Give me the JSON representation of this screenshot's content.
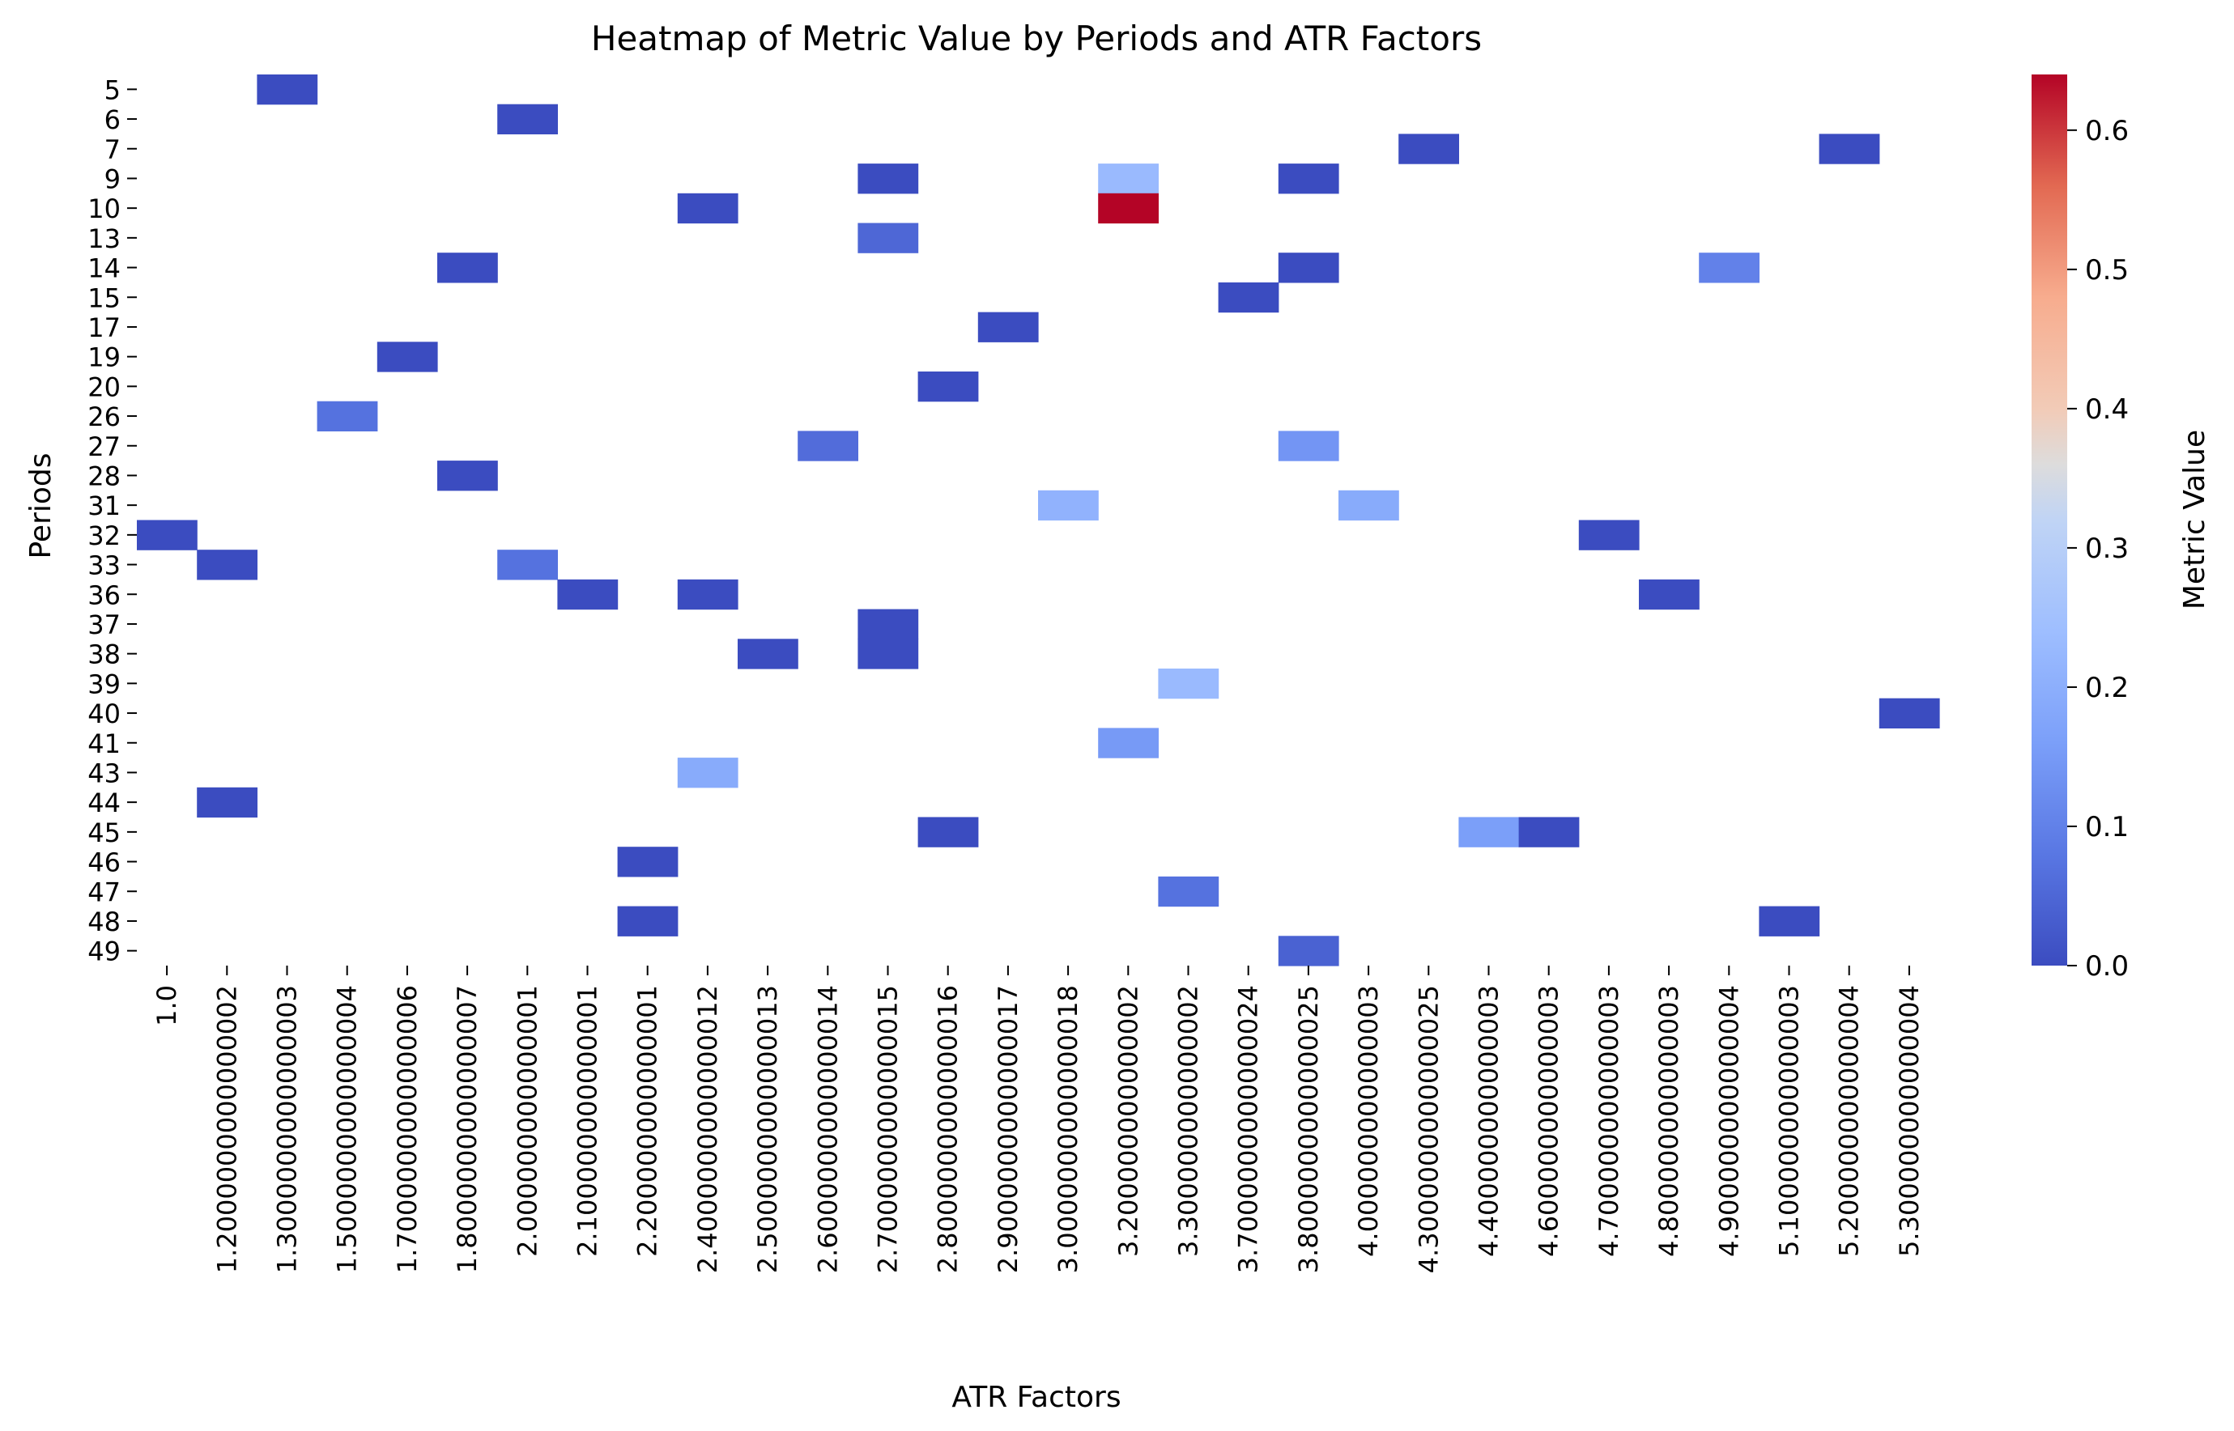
{
  "chart_data": {
    "type": "heatmap",
    "title": "Heatmap of Metric Value by Periods and ATR Factors",
    "xlabel": "ATR Factors",
    "ylabel": "Periods",
    "colorbar_label": "Metric Value",
    "colormap": "coolwarm",
    "vmin": 0.0,
    "vmax": 0.64,
    "colorbar_ticks": [
      "0.0",
      "0.1",
      "0.2",
      "0.3",
      "0.4",
      "0.5",
      "0.6"
    ],
    "colorbar_tick_values": [
      0.0,
      0.1,
      0.2,
      0.3,
      0.4,
      0.5,
      0.6
    ],
    "x_categories": [
      "1.0",
      "1.2000000000000002",
      "1.3000000000000003",
      "1.5000000000000004",
      "1.7000000000000006",
      "1.8000000000000007",
      "2.000000000000001",
      "2.100000000000001",
      "2.200000000000001",
      "2.4000000000000012",
      "2.5000000000000013",
      "2.6000000000000014",
      "2.7000000000000015",
      "2.8000000000000016",
      "2.9000000000000017",
      "3.0000000000000018",
      "3.200000000000002",
      "3.300000000000002",
      "3.7000000000000024",
      "3.8000000000000025",
      "4.000000000000003",
      "4.3000000000000025",
      "4.400000000000003",
      "4.600000000000003",
      "4.700000000000003",
      "4.800000000000003",
      "4.900000000000004",
      "5.100000000000003",
      "5.200000000000004",
      "5.300000000000004"
    ],
    "y_categories": [
      "5",
      "6",
      "7",
      "9",
      "10",
      "13",
      "14",
      "15",
      "17",
      "19",
      "20",
      "26",
      "27",
      "28",
      "31",
      "32",
      "33",
      "36",
      "37",
      "38",
      "39",
      "40",
      "41",
      "43",
      "44",
      "45",
      "46",
      "47",
      "48",
      "49"
    ],
    "cells": [
      {
        "x": "1.3000000000000003",
        "y": "5",
        "value": 0.0
      },
      {
        "x": "2.000000000000001",
        "y": "6",
        "value": 0.0
      },
      {
        "x": "4.3000000000000025",
        "y": "7",
        "value": 0.0
      },
      {
        "x": "5.200000000000004",
        "y": "7",
        "value": 0.0
      },
      {
        "x": "2.7000000000000015",
        "y": "9",
        "value": 0.0
      },
      {
        "x": "3.200000000000002",
        "y": "9",
        "value": 0.23
      },
      {
        "x": "3.8000000000000025",
        "y": "9",
        "value": 0.0
      },
      {
        "x": "2.4000000000000012",
        "y": "10",
        "value": 0.0
      },
      {
        "x": "3.200000000000002",
        "y": "10",
        "value": 0.64
      },
      {
        "x": "2.7000000000000015",
        "y": "13",
        "value": 0.05
      },
      {
        "x": "1.8000000000000007",
        "y": "14",
        "value": 0.0
      },
      {
        "x": "3.8000000000000025",
        "y": "14",
        "value": 0.0
      },
      {
        "x": "4.900000000000004",
        "y": "14",
        "value": 0.1
      },
      {
        "x": "3.7000000000000024",
        "y": "15",
        "value": 0.0
      },
      {
        "x": "2.9000000000000017",
        "y": "17",
        "value": 0.0
      },
      {
        "x": "1.7000000000000006",
        "y": "19",
        "value": 0.0
      },
      {
        "x": "2.8000000000000016",
        "y": "20",
        "value": 0.0
      },
      {
        "x": "1.5000000000000004",
        "y": "26",
        "value": 0.07
      },
      {
        "x": "2.6000000000000014",
        "y": "27",
        "value": 0.06
      },
      {
        "x": "3.8000000000000025",
        "y": "27",
        "value": 0.14
      },
      {
        "x": "1.8000000000000007",
        "y": "28",
        "value": 0.0
      },
      {
        "x": "3.0000000000000018",
        "y": "31",
        "value": 0.21
      },
      {
        "x": "4.000000000000003",
        "y": "31",
        "value": 0.19
      },
      {
        "x": "1.0",
        "y": "32",
        "value": 0.0
      },
      {
        "x": "4.700000000000003",
        "y": "32",
        "value": 0.0
      },
      {
        "x": "1.2000000000000002",
        "y": "33",
        "value": 0.0
      },
      {
        "x": "2.000000000000001",
        "y": "33",
        "value": 0.07
      },
      {
        "x": "2.100000000000001",
        "y": "36",
        "value": 0.0
      },
      {
        "x": "2.4000000000000012",
        "y": "36",
        "value": 0.0
      },
      {
        "x": "4.800000000000003",
        "y": "36",
        "value": 0.0
      },
      {
        "x": "2.7000000000000015",
        "y": "37",
        "value": 0.0
      },
      {
        "x": "2.5000000000000013",
        "y": "38",
        "value": 0.0
      },
      {
        "x": "2.7000000000000015",
        "y": "38",
        "value": 0.0
      },
      {
        "x": "3.300000000000002",
        "y": "39",
        "value": 0.23
      },
      {
        "x": "5.300000000000004",
        "y": "40",
        "value": 0.0
      },
      {
        "x": "3.200000000000002",
        "y": "41",
        "value": 0.15
      },
      {
        "x": "2.4000000000000012",
        "y": "43",
        "value": 0.19
      },
      {
        "x": "1.2000000000000002",
        "y": "44",
        "value": 0.0
      },
      {
        "x": "2.8000000000000016",
        "y": "45",
        "value": 0.0
      },
      {
        "x": "4.400000000000003",
        "y": "45",
        "value": 0.16
      },
      {
        "x": "4.600000000000003",
        "y": "45",
        "value": 0.0
      },
      {
        "x": "2.200000000000001",
        "y": "46",
        "value": 0.0
      },
      {
        "x": "3.300000000000002",
        "y": "47",
        "value": 0.07
      },
      {
        "x": "2.200000000000001",
        "y": "48",
        "value": 0.0
      },
      {
        "x": "5.100000000000003",
        "y": "48",
        "value": 0.0
      },
      {
        "x": "3.8000000000000025",
        "y": "49",
        "value": 0.04
      }
    ],
    "grid": false,
    "legend": "colorbar-right"
  }
}
